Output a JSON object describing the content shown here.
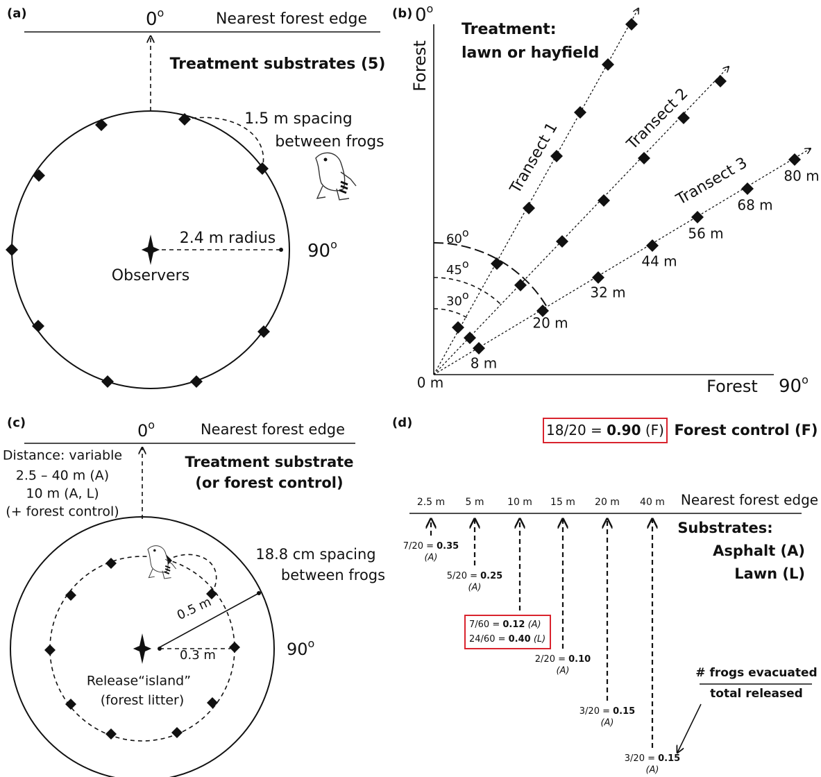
{
  "panel_a": {
    "label": "(a)",
    "angle_top": {
      "num": "0",
      "sup": "o"
    },
    "edge": "Nearest forest edge",
    "title": "Treatment substrates (5)",
    "spacing": [
      "1.5 m spacing",
      "between frogs"
    ],
    "radius": "2.4 m radius",
    "angle_right": {
      "num": "90",
      "sup": "o"
    },
    "center": "Observers"
  },
  "panel_b": {
    "label": "(b)",
    "angle_top": {
      "num": "0",
      "sup": "o"
    },
    "y_axis": "Forest",
    "treatment": [
      "Treatment:",
      "lawn or hayfield"
    ],
    "transects": [
      "Transect 1",
      "Transect 2",
      "Transect 3"
    ],
    "angles": [
      {
        "num": "30",
        "sup": "o"
      },
      {
        "num": "45",
        "sup": "o"
      },
      {
        "num": "60",
        "sup": "o"
      }
    ],
    "distances": [
      "8 m",
      "20 m",
      "32 m",
      "44 m",
      "56 m",
      "68 m",
      "80 m"
    ],
    "origin": "0 m",
    "x_axis": "Forest",
    "angle_right": {
      "num": "90",
      "sup": "o"
    }
  },
  "panel_c": {
    "label": "(c)",
    "angle_top": {
      "num": "0",
      "sup": "o"
    },
    "edge": "Nearest forest edge",
    "title": [
      "Treatment substrate",
      "(or forest control)"
    ],
    "distance": [
      "Distance: variable",
      "2.5 – 40 m (A)",
      "10 m (A, L)",
      "(+ forest control)"
    ],
    "spacing": [
      "18.8 cm spacing",
      "between frogs"
    ],
    "outer_radius": "0.5 m",
    "inner_radius": "0.3 m",
    "angle_right": {
      "num": "90",
      "sup": "o"
    },
    "center": [
      "Release“island”",
      "(forest litter)"
    ]
  },
  "panel_d": {
    "label": "(d)",
    "control": {
      "fraction": "18/20 = ",
      "value": "0.90",
      "group": " (F)"
    },
    "control_label": "Forest control (F)",
    "distances": [
      "2.5 m",
      "5 m",
      "10 m",
      "15 m",
      "20 m",
      "40 m"
    ],
    "edge": "Nearest forest edge",
    "substrates": [
      "Substrates:",
      "Asphalt (A)",
      "Lawn (L)"
    ],
    "results": [
      {
        "lines": [
          {
            "fraction": "7/20 = ",
            "value": "0.35",
            "group": "(A)"
          }
        ]
      },
      {
        "lines": [
          {
            "fraction": "5/20 = ",
            "value": "0.25",
            "group": "(A)"
          }
        ]
      },
      {
        "lines": [
          {
            "fraction": "7/60   = ",
            "value": "0.12",
            "group": " (A)"
          },
          {
            "fraction": "24/60 = ",
            "value": "0.40",
            "group": " (L)"
          }
        ]
      },
      {
        "lines": [
          {
            "fraction": "2/20 = ",
            "value": "0.10",
            "group": "(A)"
          }
        ]
      },
      {
        "lines": [
          {
            "fraction": "3/20 = ",
            "value": "0.15",
            "group": "(A)"
          }
        ]
      },
      {
        "lines": [
          {
            "fraction": "3/20 = ",
            "value": "0.15",
            "group": "(A)"
          }
        ]
      }
    ],
    "legend": [
      "# frogs evacuated",
      "total released"
    ]
  }
}
